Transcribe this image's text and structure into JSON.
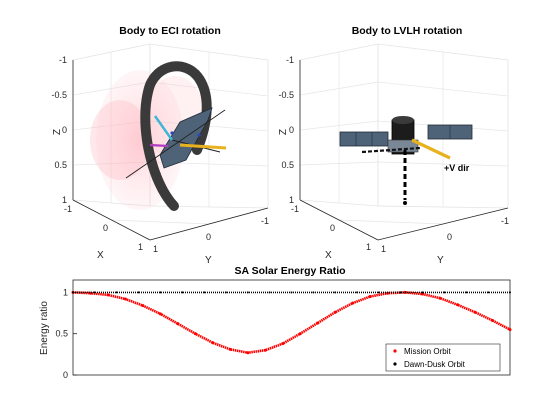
{
  "panels": {
    "left": {
      "title": "Body to ECI rotation",
      "z_label": "Z",
      "x_label": "X",
      "y_label": "Y",
      "z_ticks": [
        "-1",
        "-0.5",
        "0",
        "0.5",
        "1"
      ],
      "x_ticks": [
        "-1",
        "0",
        "1"
      ],
      "y_ticks": [
        "1",
        "0",
        "-1"
      ]
    },
    "right": {
      "title": "Body to LVLH rotation",
      "z_label": "Z",
      "x_label": "X",
      "y_label": "Y",
      "z_ticks": [
        "-1",
        "-0.5",
        "0",
        "0.5",
        "1"
      ],
      "x_ticks": [
        "-1",
        "0",
        "1"
      ],
      "y_ticks": [
        "1",
        "0",
        "-1"
      ],
      "annotation": "+V dir"
    }
  },
  "chart_data": {
    "type": "scatter",
    "title": "SA Solar Energy Ratio",
    "xlabel": "",
    "ylabel": "Energy ratio",
    "ylim": [
      0,
      1.15
    ],
    "xlim": [
      0,
      1
    ],
    "yticks": [
      "0",
      "0.5",
      "1"
    ],
    "legend_position": "bottom-right",
    "series": [
      {
        "name": "Mission Orbit",
        "color": "#ff0000",
        "x": [
          0,
          0.04,
          0.08,
          0.12,
          0.16,
          0.2,
          0.24,
          0.28,
          0.32,
          0.36,
          0.4,
          0.44,
          0.48,
          0.52,
          0.56,
          0.6,
          0.64,
          0.68,
          0.72,
          0.76,
          0.8,
          0.84,
          0.88,
          0.92,
          0.96,
          1.0
        ],
        "y": [
          1.0,
          0.99,
          0.97,
          0.92,
          0.84,
          0.74,
          0.62,
          0.5,
          0.39,
          0.31,
          0.27,
          0.3,
          0.38,
          0.5,
          0.63,
          0.76,
          0.87,
          0.95,
          0.99,
          1.0,
          0.98,
          0.93,
          0.85,
          0.76,
          0.66,
          0.55
        ]
      },
      {
        "name": "Dawn-Dusk Orbit",
        "color": "#000000",
        "x": [
          0,
          0.05,
          0.1,
          0.15,
          0.2,
          0.25,
          0.3,
          0.35,
          0.4,
          0.45,
          0.5,
          0.55,
          0.6,
          0.65,
          0.7,
          0.75,
          0.8,
          0.85,
          0.9,
          0.95,
          1.0
        ],
        "y": [
          1.0,
          1.0,
          1.0,
          1.0,
          1.0,
          1.0,
          1.0,
          1.0,
          1.0,
          1.0,
          1.0,
          1.0,
          1.0,
          1.0,
          1.0,
          1.0,
          1.0,
          1.0,
          1.0,
          1.0,
          1.0
        ]
      }
    ]
  }
}
